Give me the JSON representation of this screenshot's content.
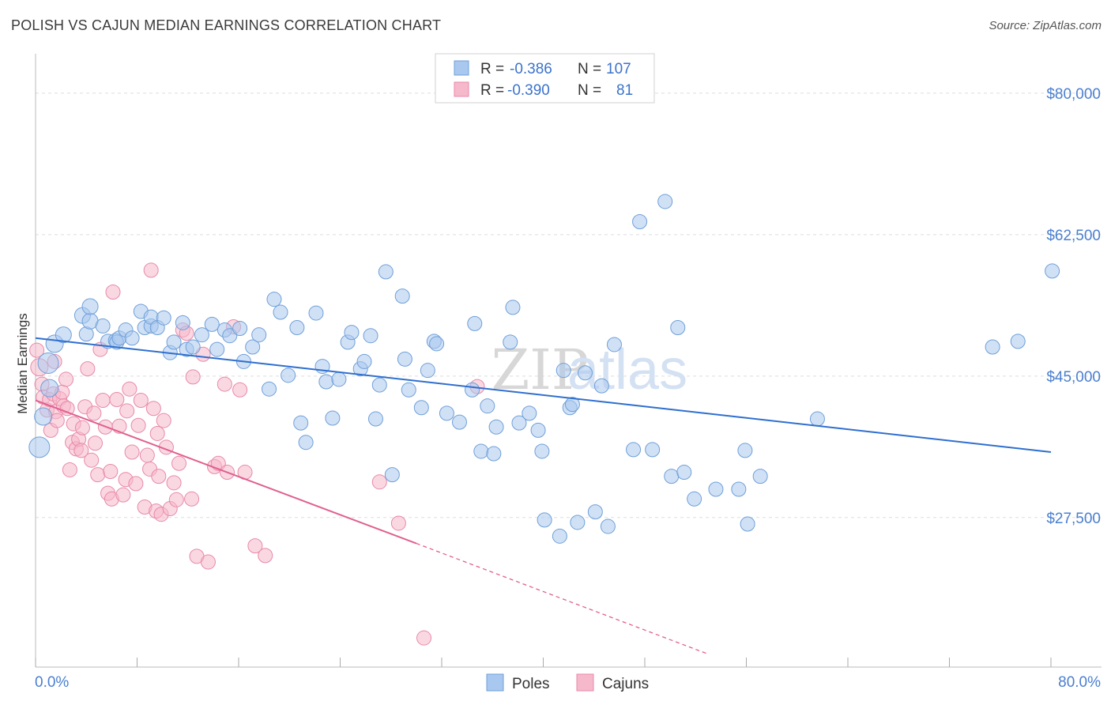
{
  "title": "POLISH VS CAJUN MEDIAN EARNINGS CORRELATION CHART",
  "source": "Source: ZipAtlas.com",
  "watermark": {
    "part1": "ZIP",
    "part2": "atlas"
  },
  "colors": {
    "poles_fill": "#a9c8ef",
    "poles_stroke": "#6f9fd8",
    "poles_line": "#2f6fcf",
    "cajuns_fill": "#f6b8cb",
    "cajuns_stroke": "#e889a8",
    "cajuns_line": "#e0608f",
    "axis_text": "#4a7fd0",
    "grid": "#dddddd",
    "legend_value": "#3b73cc"
  },
  "legend_box": {
    "rows": [
      {
        "r_label": "R =",
        "r_value": "-0.386",
        "n_label": "N =",
        "n_value": "107",
        "series": "poles"
      },
      {
        "r_label": "R =",
        "r_value": "-0.390",
        "n_label": "N =",
        "n_value": "81",
        "series": "cajuns"
      }
    ]
  },
  "chart_data": {
    "type": "scatter",
    "title": "POLISH VS CAJUN MEDIAN EARNINGS CORRELATION CHART",
    "xlabel": "",
    "ylabel": "Median Earnings",
    "xlim": [
      0,
      80
    ],
    "ylim": [
      9000,
      84000
    ],
    "x_tick_labels": [
      {
        "value": 0,
        "label": "0.0%"
      },
      {
        "value": 80,
        "label": "80.0%"
      }
    ],
    "y_tick_labels": [
      {
        "value": 27500,
        "label": "$27,500"
      },
      {
        "value": 45000,
        "label": "$45,000"
      },
      {
        "value": 62500,
        "label": "$62,500"
      },
      {
        "value": 80000,
        "label": "$80,000"
      }
    ],
    "x_ticks": [
      0,
      8,
      16,
      24,
      32,
      40,
      48,
      56,
      64,
      72,
      80
    ],
    "grid": true,
    "legend_position": "bottom-center",
    "series": [
      {
        "name": "Poles",
        "trend": {
          "x0": 0,
          "y0": 49700,
          "x1": 80,
          "y1": 35600
        },
        "points": [
          [
            0.3,
            36200,
            26
          ],
          [
            0.6,
            40000,
            22
          ],
          [
            1.0,
            46600,
            26
          ],
          [
            1.1,
            43500,
            22
          ],
          [
            1.5,
            49000,
            22
          ],
          [
            2.2,
            50100,
            20
          ],
          [
            3.7,
            52500,
            20
          ],
          [
            4.0,
            50200,
            18
          ],
          [
            4.3,
            51800,
            20
          ],
          [
            4.3,
            53600,
            20
          ],
          [
            5.3,
            51200,
            18
          ],
          [
            5.7,
            49300,
            18
          ],
          [
            6.3,
            49400,
            18
          ],
          [
            6.4,
            49200,
            18
          ],
          [
            6.6,
            49700,
            18
          ],
          [
            7.1,
            50700,
            18
          ],
          [
            7.6,
            49700,
            18
          ],
          [
            8.3,
            53000,
            18
          ],
          [
            8.6,
            51000,
            18
          ],
          [
            9.1,
            51200,
            18
          ],
          [
            9.1,
            52300,
            18
          ],
          [
            9.6,
            51000,
            18
          ],
          [
            10.1,
            52200,
            18
          ],
          [
            10.6,
            47900,
            18
          ],
          [
            10.9,
            49200,
            18
          ],
          [
            11.6,
            51600,
            18
          ],
          [
            11.9,
            48300,
            18
          ],
          [
            12.4,
            48600,
            18
          ],
          [
            13.1,
            50100,
            18
          ],
          [
            13.9,
            51400,
            18
          ],
          [
            14.3,
            48300,
            18
          ],
          [
            14.9,
            50700,
            18
          ],
          [
            15.3,
            50000,
            18
          ],
          [
            16.1,
            50900,
            18
          ],
          [
            16.4,
            46800,
            18
          ],
          [
            17.1,
            48600,
            18
          ],
          [
            17.6,
            50100,
            18
          ],
          [
            18.4,
            43400,
            18
          ],
          [
            18.8,
            54500,
            18
          ],
          [
            19.3,
            52900,
            18
          ],
          [
            19.9,
            45100,
            18
          ],
          [
            20.6,
            51000,
            18
          ],
          [
            20.9,
            39200,
            18
          ],
          [
            21.3,
            36800,
            18
          ],
          [
            22.1,
            52800,
            18
          ],
          [
            22.6,
            46200,
            18
          ],
          [
            22.9,
            44300,
            18
          ],
          [
            23.4,
            39800,
            18
          ],
          [
            23.9,
            44600,
            18
          ],
          [
            24.6,
            49200,
            18
          ],
          [
            24.9,
            50400,
            18
          ],
          [
            25.6,
            45900,
            18
          ],
          [
            25.9,
            46800,
            18
          ],
          [
            26.4,
            50000,
            18
          ],
          [
            26.8,
            39700,
            18
          ],
          [
            27.1,
            43900,
            18
          ],
          [
            27.6,
            57900,
            18
          ],
          [
            28.1,
            32800,
            18
          ],
          [
            28.9,
            54900,
            18
          ],
          [
            29.1,
            47100,
            18
          ],
          [
            29.4,
            43300,
            18
          ],
          [
            30.4,
            41100,
            18
          ],
          [
            30.9,
            45700,
            18
          ],
          [
            31.4,
            49300,
            18
          ],
          [
            31.6,
            49000,
            18
          ],
          [
            32.4,
            40400,
            18
          ],
          [
            33.4,
            39300,
            18
          ],
          [
            34.4,
            43300,
            18
          ],
          [
            34.6,
            51500,
            18
          ],
          [
            35.1,
            35700,
            18
          ],
          [
            35.6,
            41300,
            18
          ],
          [
            36.1,
            35400,
            18
          ],
          [
            36.3,
            38700,
            18
          ],
          [
            37.4,
            49200,
            18
          ],
          [
            37.6,
            53500,
            18
          ],
          [
            38.1,
            39200,
            18
          ],
          [
            38.9,
            40400,
            18
          ],
          [
            39.6,
            38300,
            18
          ],
          [
            39.9,
            35700,
            18
          ],
          [
            40.1,
            27200,
            18
          ],
          [
            41.3,
            25200,
            18
          ],
          [
            41.6,
            45700,
            18
          ],
          [
            42.1,
            41100,
            18
          ],
          [
            42.3,
            41500,
            18
          ],
          [
            42.7,
            26900,
            18
          ],
          [
            43.3,
            45400,
            18
          ],
          [
            44.1,
            28200,
            18
          ],
          [
            44.6,
            43800,
            18
          ],
          [
            45.1,
            26400,
            18
          ],
          [
            45.6,
            48900,
            18
          ],
          [
            47.1,
            35900,
            18
          ],
          [
            47.6,
            64100,
            18
          ],
          [
            48.6,
            35900,
            18
          ],
          [
            49.6,
            66600,
            18
          ],
          [
            50.1,
            32600,
            18
          ],
          [
            50.6,
            51000,
            18
          ],
          [
            51.1,
            33100,
            18
          ],
          [
            51.9,
            29800,
            18
          ],
          [
            53.6,
            31000,
            18
          ],
          [
            55.4,
            31000,
            18
          ],
          [
            55.9,
            35800,
            18
          ],
          [
            56.1,
            26700,
            18
          ],
          [
            57.1,
            32600,
            18
          ],
          [
            61.6,
            39700,
            18
          ],
          [
            75.4,
            48600,
            18
          ],
          [
            77.4,
            49300,
            18
          ],
          [
            80.1,
            58000,
            18
          ]
        ]
      },
      {
        "name": "Cajuns",
        "trend": {
          "x0": 0,
          "y0": 42000,
          "x1": 30,
          "y1": 24300
        },
        "trend_dashed": {
          "x0": 30,
          "y0": 24300,
          "x1": 53,
          "y1": 10600
        },
        "points": [
          [
            0.1,
            48200,
            18
          ],
          [
            0.3,
            46100,
            22
          ],
          [
            0.5,
            44000,
            18
          ],
          [
            0.6,
            42400,
            18
          ],
          [
            0.9,
            40800,
            18
          ],
          [
            1.1,
            42100,
            18
          ],
          [
            1.2,
            38300,
            18
          ],
          [
            1.4,
            42800,
            18
          ],
          [
            1.5,
            46800,
            18
          ],
          [
            1.6,
            40600,
            18
          ],
          [
            1.7,
            39500,
            18
          ],
          [
            1.9,
            42200,
            18
          ],
          [
            2.1,
            43000,
            18
          ],
          [
            2.2,
            41300,
            18
          ],
          [
            2.4,
            44600,
            18
          ],
          [
            2.5,
            41000,
            18
          ],
          [
            2.7,
            33400,
            18
          ],
          [
            2.9,
            36800,
            18
          ],
          [
            3.0,
            39100,
            18
          ],
          [
            3.2,
            36000,
            18
          ],
          [
            3.4,
            37200,
            18
          ],
          [
            3.6,
            35800,
            18
          ],
          [
            3.7,
            38600,
            18
          ],
          [
            3.9,
            41200,
            18
          ],
          [
            4.1,
            45900,
            18
          ],
          [
            4.4,
            34600,
            18
          ],
          [
            4.6,
            40400,
            18
          ],
          [
            4.7,
            36700,
            18
          ],
          [
            4.9,
            32800,
            18
          ],
          [
            5.1,
            48300,
            18
          ],
          [
            5.3,
            42000,
            18
          ],
          [
            5.5,
            38700,
            18
          ],
          [
            5.7,
            30500,
            18
          ],
          [
            5.9,
            33200,
            18
          ],
          [
            6.0,
            29800,
            18
          ],
          [
            6.1,
            55400,
            18
          ],
          [
            6.4,
            42100,
            18
          ],
          [
            6.6,
            38800,
            18
          ],
          [
            6.9,
            30300,
            18
          ],
          [
            7.1,
            32200,
            18
          ],
          [
            7.2,
            40700,
            18
          ],
          [
            7.4,
            43400,
            18
          ],
          [
            7.6,
            35600,
            18
          ],
          [
            7.9,
            31700,
            18
          ],
          [
            8.1,
            38900,
            18
          ],
          [
            8.3,
            42000,
            18
          ],
          [
            8.6,
            28800,
            18
          ],
          [
            8.8,
            35200,
            18
          ],
          [
            9.0,
            33500,
            18
          ],
          [
            9.1,
            58100,
            18
          ],
          [
            9.3,
            41000,
            18
          ],
          [
            9.5,
            28300,
            18
          ],
          [
            9.6,
            37900,
            18
          ],
          [
            9.7,
            32600,
            18
          ],
          [
            9.9,
            27900,
            18
          ],
          [
            10.1,
            39500,
            18
          ],
          [
            10.3,
            36200,
            18
          ],
          [
            10.6,
            28600,
            18
          ],
          [
            10.9,
            31800,
            18
          ],
          [
            11.1,
            29700,
            18
          ],
          [
            11.3,
            34200,
            18
          ],
          [
            11.6,
            50700,
            18
          ],
          [
            11.9,
            50300,
            18
          ],
          [
            12.3,
            29800,
            18
          ],
          [
            12.4,
            44900,
            18
          ],
          [
            12.7,
            22700,
            18
          ],
          [
            13.2,
            47700,
            18
          ],
          [
            13.6,
            22000,
            18
          ],
          [
            14.1,
            33800,
            18
          ],
          [
            14.4,
            34200,
            18
          ],
          [
            14.9,
            44000,
            18
          ],
          [
            15.1,
            33100,
            18
          ],
          [
            15.6,
            51100,
            18
          ],
          [
            16.1,
            43300,
            18
          ],
          [
            16.5,
            33100,
            18
          ],
          [
            17.3,
            24000,
            18
          ],
          [
            18.1,
            22800,
            18
          ],
          [
            27.1,
            31900,
            18
          ],
          [
            28.6,
            26800,
            18
          ],
          [
            30.6,
            12600,
            18
          ],
          [
            34.8,
            43700,
            18
          ]
        ]
      }
    ]
  }
}
